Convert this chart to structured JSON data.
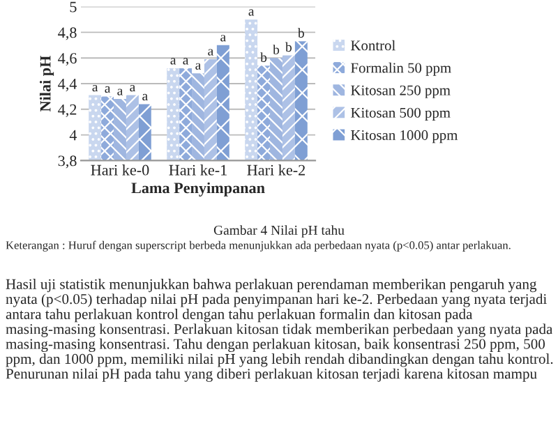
{
  "chart_data": {
    "type": "bar",
    "xlabel": "Lama Penyimpanan",
    "ylabel": "Nilai pH",
    "categories": [
      "Hari ke-0",
      "Hari ke-1",
      "Hari ke-2"
    ],
    "series": [
      {
        "name": "Kontrol",
        "color": "#c9d7ef",
        "values": [
          4.31,
          4.52,
          4.9
        ]
      },
      {
        "name": "Formalin 50 ppm",
        "color": "#8eaadb",
        "values": [
          4.3,
          4.52,
          4.54
        ]
      },
      {
        "name": "Kitosan 250 ppm",
        "color": "#9fb6e0",
        "values": [
          4.28,
          4.48,
          4.6
        ]
      },
      {
        "name": "Kitosan 500 ppm",
        "color": "#adc1e6",
        "values": [
          4.31,
          4.59,
          4.62
        ]
      },
      {
        "name": "Kitosan 1000 ppm",
        "color": "#7f9fd4",
        "values": [
          4.24,
          4.7,
          4.73
        ]
      }
    ],
    "value_labels": [
      [
        "a",
        "a",
        "a"
      ],
      [
        "a",
        "a",
        "b"
      ],
      [
        "a",
        "a",
        "b"
      ],
      [
        "a",
        "a",
        "b"
      ],
      [
        "a",
        "a",
        "b"
      ]
    ],
    "ylim": [
      3.8,
      5
    ],
    "yticks": [
      {
        "value": 3.8,
        "label": "3,8"
      },
      {
        "value": 4,
        "label": "4"
      },
      {
        "value": 4.2,
        "label": "4,2"
      },
      {
        "value": 4.4,
        "label": "4,4"
      },
      {
        "value": 4.6,
        "label": "4,6"
      },
      {
        "value": 4.8,
        "label": "4,8"
      },
      {
        "value": 5,
        "label": "5"
      }
    ],
    "grid": "y",
    "legend": "right",
    "annotations": [
      "Gambar 4 Nilai pH tahu",
      "Keterangan : Huruf dengan superscript berbeda menunjukkan ada perbedaan nyata (p<0.05) antar perlakuan.",
      "Hasil uji statistik menunjukkan bahwa perlakuan perendaman memberikan pengaruh yang nyata (p<0.05) terhadap nilai pH pada penyimpanan hari ke-2. Perbedaan yang nyata terjadi antara tahu perlakuan kontrol dengan tahu perlakuan formalin dan kitosan pada masing-masing konsentrasi. Perlakuan kitosan tidak memberikan perbedaan yang nyata pada masing-masing konsentrasi. Tahu dengan perlakuan kitosan, baik konsentrasi 250 ppm, 500 ppm, dan 1000 ppm, memiliki nilai pH yang lebih rendah dibandingkan dengan tahu kontrol. Penurunan nilai pH pada tahu yang diberi perlakuan kitosan terjadi karena kitosan mampu"
    ]
  }
}
